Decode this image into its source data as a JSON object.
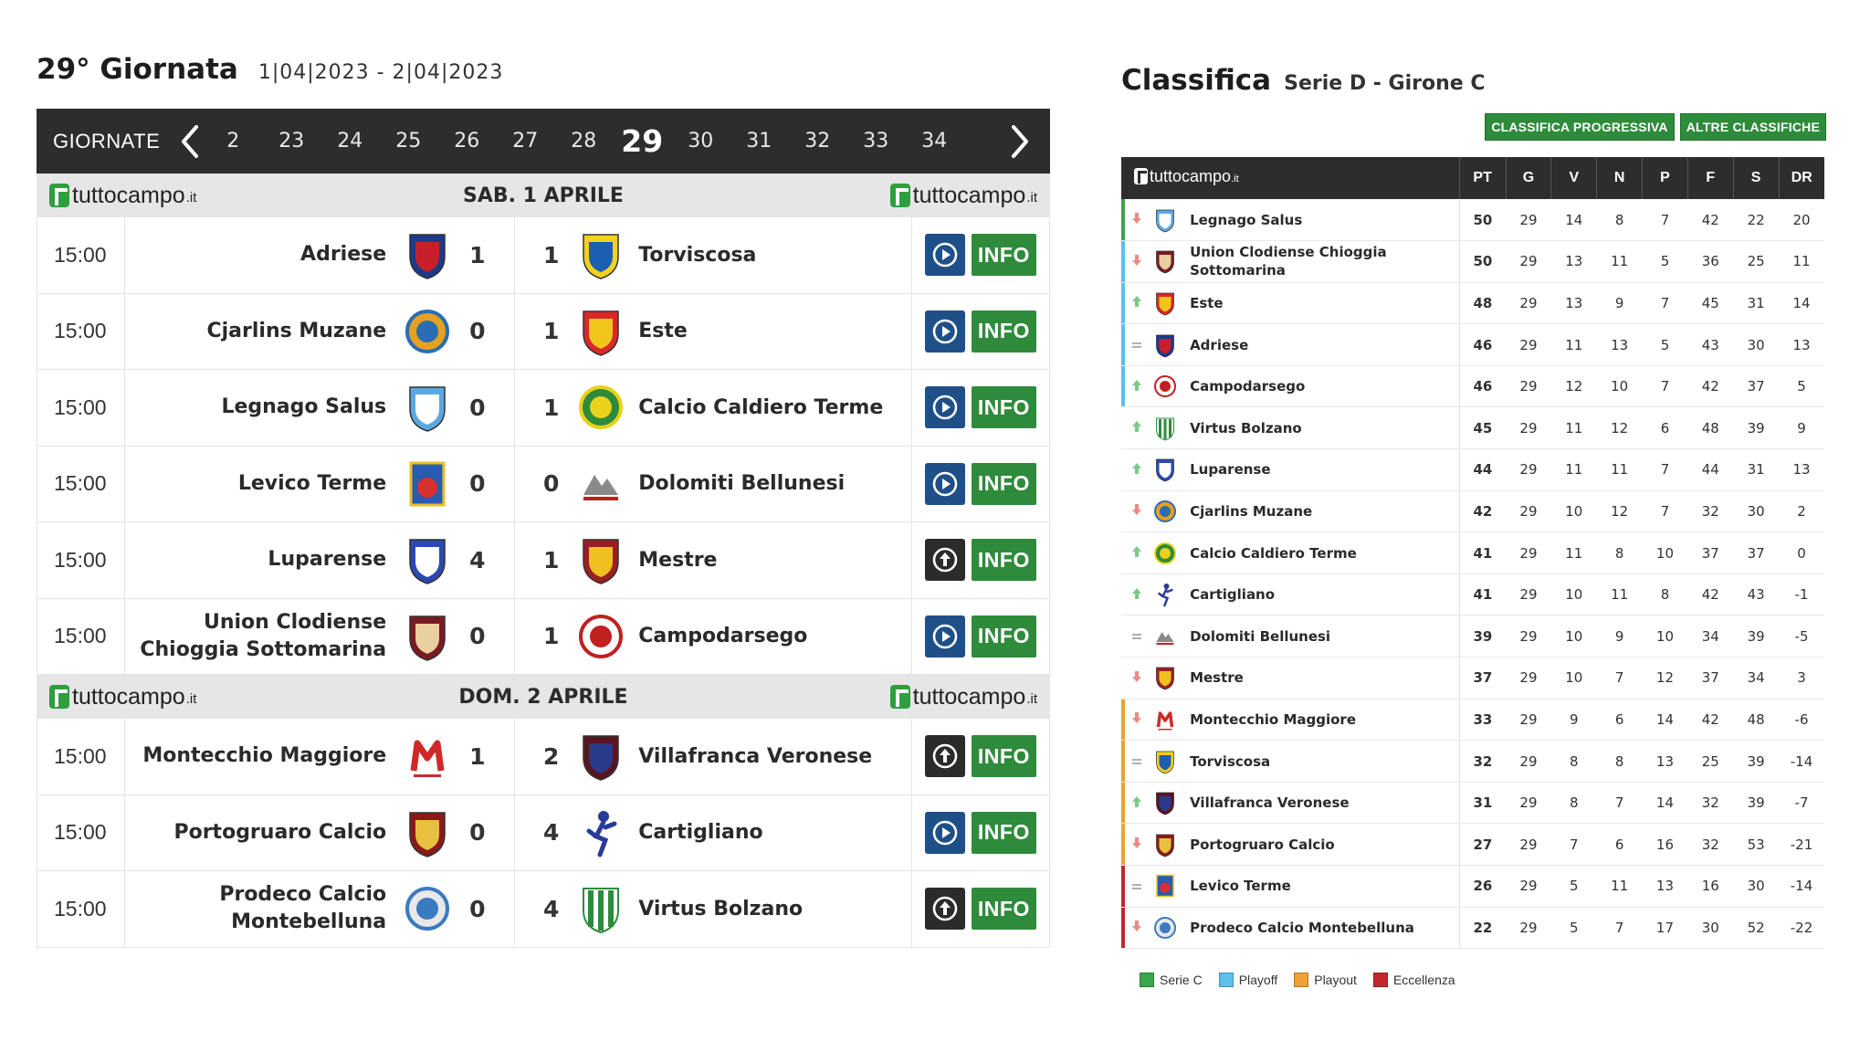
{
  "round": {
    "title": "29° Giornata",
    "dates": "1|04|2023 - 2|04|2023",
    "nav_label": "GIORNATE",
    "rounds": [
      "2",
      "23",
      "24",
      "25",
      "26",
      "27",
      "28",
      "29",
      "30",
      "31",
      "32",
      "33",
      "34"
    ],
    "active_round": "29"
  },
  "brand": {
    "name": "tuttocampo",
    "tld": ".it"
  },
  "days": [
    {
      "title": "SAB. 1 APRILE",
      "matches": [
        {
          "time": "15:00",
          "home": "Adriese",
          "home_score": "1",
          "away_score": "1",
          "away": "Torviscosa",
          "home_crest": "adriese-crest",
          "away_crest": "torviscosa-crest",
          "video": "play",
          "info": "INFO"
        },
        {
          "time": "15:00",
          "home": "Cjarlins Muzane",
          "home_score": "0",
          "away_score": "1",
          "away": "Este",
          "home_crest": "cjarlins-crest",
          "away_crest": "este-crest",
          "video": "play",
          "info": "INFO"
        },
        {
          "time": "15:00",
          "home": "Legnago Salus",
          "home_score": "0",
          "away_score": "1",
          "away": "Calcio Caldiero Terme",
          "home_crest": "legnago-crest",
          "away_crest": "caldiero-crest",
          "video": "play",
          "info": "INFO"
        },
        {
          "time": "15:00",
          "home": "Levico Terme",
          "home_score": "0",
          "away_score": "0",
          "away": "Dolomiti Bellunesi",
          "home_crest": "levico-crest",
          "away_crest": "dolomiti-crest",
          "video": "play",
          "info": "INFO"
        },
        {
          "time": "15:00",
          "home": "Luparense",
          "home_score": "4",
          "away_score": "1",
          "away": "Mestre",
          "home_crest": "luparense-crest",
          "away_crest": "mestre-crest",
          "video": "upload",
          "info": "INFO"
        },
        {
          "time": "15:00",
          "home": "Union Clodiense Chioggia Sottomarina",
          "home_score": "0",
          "away_score": "1",
          "away": "Campodarsego",
          "home_crest": "clodiense-crest",
          "away_crest": "campodarsego-crest",
          "video": "play",
          "info": "INFO"
        }
      ]
    },
    {
      "title": "DOM. 2 APRILE",
      "matches": [
        {
          "time": "15:00",
          "home": "Montecchio Maggiore",
          "home_score": "1",
          "away_score": "2",
          "away": "Villafranca Veronese",
          "home_crest": "montecchio-crest",
          "away_crest": "villafranca-crest",
          "video": "upload",
          "info": "INFO"
        },
        {
          "time": "15:00",
          "home": "Portogruaro Calcio",
          "home_score": "0",
          "away_score": "4",
          "away": "Cartigliano",
          "home_crest": "portogruaro-crest",
          "away_crest": "cartigliano-crest",
          "video": "play",
          "info": "INFO"
        },
        {
          "time": "15:00",
          "home": "Prodeco Calcio Montebelluna",
          "home_score": "0",
          "away_score": "4",
          "away": "Virtus Bolzano",
          "home_crest": "prodeco-crest",
          "away_crest": "virtus-crest",
          "video": "upload",
          "info": "INFO"
        }
      ]
    }
  ],
  "standings": {
    "title": "Classifica",
    "subtitle": "Serie D - Girone C",
    "buttons": [
      "CLASSIFICA PROGRESSIVA",
      "ALTRE CLASSIFICHE"
    ],
    "columns": [
      "PT",
      "G",
      "V",
      "N",
      "P",
      "F",
      "S",
      "DR"
    ],
    "rows": [
      {
        "zone": "seriec",
        "trend": "down",
        "team": "Legnago Salus",
        "crest": "legnago-crest",
        "values": [
          "50",
          "29",
          "14",
          "8",
          "7",
          "42",
          "22",
          "20"
        ]
      },
      {
        "zone": "playoff",
        "trend": "down",
        "team": "Union Clodiense Chioggia Sottomarina",
        "crest": "clodiense-crest",
        "values": [
          "50",
          "29",
          "13",
          "11",
          "5",
          "36",
          "25",
          "11"
        ]
      },
      {
        "zone": "playoff",
        "trend": "up",
        "team": "Este",
        "crest": "este-crest",
        "values": [
          "48",
          "29",
          "13",
          "9",
          "7",
          "45",
          "31",
          "14"
        ]
      },
      {
        "zone": "playoff",
        "trend": "same",
        "team": "Adriese",
        "crest": "adriese-crest",
        "values": [
          "46",
          "29",
          "11",
          "13",
          "5",
          "43",
          "30",
          "13"
        ]
      },
      {
        "zone": "playoff",
        "trend": "up",
        "team": "Campodarsego",
        "crest": "campodarsego-crest",
        "values": [
          "46",
          "29",
          "12",
          "10",
          "7",
          "42",
          "37",
          "5"
        ]
      },
      {
        "zone": "none",
        "trend": "up",
        "team": "Virtus Bolzano",
        "crest": "virtus-crest",
        "values": [
          "45",
          "29",
          "11",
          "12",
          "6",
          "48",
          "39",
          "9"
        ]
      },
      {
        "zone": "none",
        "trend": "up",
        "team": "Luparense",
        "crest": "luparense-crest",
        "values": [
          "44",
          "29",
          "11",
          "11",
          "7",
          "44",
          "31",
          "13"
        ]
      },
      {
        "zone": "none",
        "trend": "down",
        "team": "Cjarlins Muzane",
        "crest": "cjarlins-crest",
        "values": [
          "42",
          "29",
          "10",
          "12",
          "7",
          "32",
          "30",
          "2"
        ]
      },
      {
        "zone": "none",
        "trend": "up",
        "team": "Calcio Caldiero Terme",
        "crest": "caldiero-crest",
        "values": [
          "41",
          "29",
          "11",
          "8",
          "10",
          "37",
          "37",
          "0"
        ]
      },
      {
        "zone": "none",
        "trend": "up",
        "team": "Cartigliano",
        "crest": "cartigliano-crest",
        "values": [
          "41",
          "29",
          "10",
          "11",
          "8",
          "42",
          "43",
          "-1"
        ]
      },
      {
        "zone": "none",
        "trend": "same",
        "team": "Dolomiti Bellunesi",
        "crest": "dolomiti-crest",
        "values": [
          "39",
          "29",
          "10",
          "9",
          "10",
          "34",
          "39",
          "-5"
        ]
      },
      {
        "zone": "none",
        "trend": "down",
        "team": "Mestre",
        "crest": "mestre-crest",
        "values": [
          "37",
          "29",
          "10",
          "7",
          "12",
          "37",
          "34",
          "3"
        ]
      },
      {
        "zone": "playout",
        "trend": "down",
        "team": "Montecchio Maggiore",
        "crest": "montecchio-crest",
        "values": [
          "33",
          "29",
          "9",
          "6",
          "14",
          "42",
          "48",
          "-6"
        ]
      },
      {
        "zone": "playout",
        "trend": "same",
        "team": "Torviscosa",
        "crest": "torviscosa-crest",
        "values": [
          "32",
          "29",
          "8",
          "8",
          "13",
          "25",
          "39",
          "-14"
        ]
      },
      {
        "zone": "playout",
        "trend": "up",
        "team": "Villafranca Veronese",
        "crest": "villafranca-crest",
        "values": [
          "31",
          "29",
          "8",
          "7",
          "14",
          "32",
          "39",
          "-7"
        ]
      },
      {
        "zone": "playout",
        "trend": "down",
        "team": "Portogruaro Calcio",
        "crest": "portogruaro-crest",
        "values": [
          "27",
          "29",
          "7",
          "6",
          "16",
          "32",
          "53",
          "-21"
        ]
      },
      {
        "zone": "eccellenza",
        "trend": "same",
        "team": "Levico Terme",
        "crest": "levico-crest",
        "values": [
          "26",
          "29",
          "5",
          "11",
          "13",
          "16",
          "30",
          "-14"
        ]
      },
      {
        "zone": "eccellenza",
        "trend": "down",
        "team": "Prodeco Calcio Montebelluna",
        "crest": "prodeco-crest",
        "values": [
          "22",
          "29",
          "5",
          "7",
          "17",
          "30",
          "52",
          "-22"
        ]
      }
    ],
    "legend": [
      {
        "label": "Serie C",
        "zone": "seriec",
        "color": "#3aa64c"
      },
      {
        "label": "Playoff",
        "zone": "playoff",
        "color": "#5bc0eb"
      },
      {
        "label": "Playout",
        "zone": "playout",
        "color": "#f0a035"
      },
      {
        "label": "Eccellenza",
        "zone": "eccellenza",
        "color": "#c0282d"
      }
    ]
  },
  "colors": {
    "accent_green": "#2e8b3b",
    "play_blue": "#1f4f87",
    "header_dark": "#2d2d2d",
    "trend_up": "#7cc88a",
    "trend_down": "#e88a8a",
    "trend_same": "#b0b0b0"
  }
}
